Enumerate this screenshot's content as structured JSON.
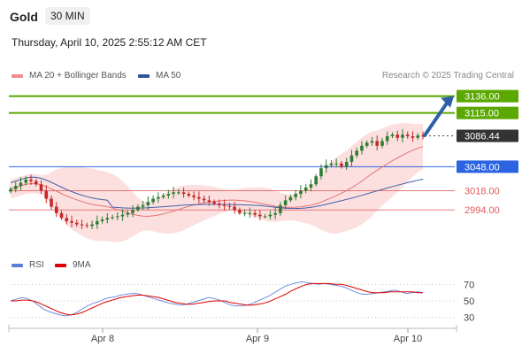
{
  "header": {
    "title": "Gold",
    "timeframe": "30 MIN"
  },
  "datetime": "Thursday, April 10, 2025 2:55:12 AM CET",
  "legend": {
    "bollinger": {
      "label": "MA 20 + Bollinger Bands",
      "color": "#f28b8b"
    },
    "ma50": {
      "label": "MA 50",
      "color": "#2f5597"
    }
  },
  "credit": "Research © 2025 Trading Central",
  "rsi_legend": {
    "rsi": {
      "label": "RSI",
      "color": "#5b7fd6"
    },
    "ma9": {
      "label": "9MA",
      "color": "#e00000"
    }
  },
  "chart_data": {
    "type": "candlestick",
    "instrument": "Gold",
    "timeframe": "30 MIN",
    "x_ticks": [
      "Apr 8",
      "Apr 9",
      "Apr 10"
    ],
    "price_range": [
      2960,
      3150
    ],
    "levels": [
      {
        "value": 3136.0,
        "label": "3136.00",
        "color": "#5aa800",
        "style": "resistance"
      },
      {
        "value": 3115.0,
        "label": "3115.00",
        "color": "#5aa800",
        "style": "resistance"
      },
      {
        "value": 3086.44,
        "label": "3086.44",
        "color": "#333333",
        "style": "last"
      },
      {
        "value": 3048.0,
        "label": "3048.00",
        "color": "#2b63e0",
        "style": "pivot"
      },
      {
        "value": 3018.0,
        "label": "3018.00",
        "color": "#e05a5a",
        "style": "support"
      },
      {
        "value": 2994.0,
        "label": "2994.00",
        "color": "#e05a5a",
        "style": "support"
      }
    ],
    "closes": [
      3020,
      3024,
      3028,
      3032,
      3030,
      3026,
      3018,
      3008,
      2998,
      2990,
      2984,
      2980,
      2978,
      2976,
      2975,
      2974,
      2976,
      2980,
      2982,
      2984,
      2985,
      2986,
      2988,
      2990,
      2994,
      2998,
      3000,
      3004,
      3008,
      3010,
      3012,
      3014,
      3016,
      3016,
      3014,
      3012,
      3010,
      3008,
      3006,
      3004,
      3002,
      3000,
      2999,
      2998,
      2994,
      2990,
      2990,
      2990,
      2988,
      2986,
      2986,
      2988,
      2990,
      3000,
      3006,
      3010,
      3014,
      3018,
      3022,
      3026,
      3036,
      3046,
      3050,
      3052,
      3052,
      3048,
      3054,
      3062,
      3068,
      3074,
      3078,
      3080,
      3074,
      3080,
      3086,
      3088,
      3084,
      3088,
      3086,
      3084,
      3087,
      3086
    ],
    "arrow": {
      "from_value": 3087,
      "to_value": 3136,
      "color": "#2f5fa7"
    },
    "rsi": {
      "ticks": [
        70,
        50,
        30
      ],
      "range": [
        20,
        80
      ],
      "values": [
        50,
        52,
        54,
        53,
        50,
        45,
        40,
        37,
        35,
        33,
        32,
        33,
        36,
        40,
        44,
        47,
        49,
        52,
        54,
        55,
        57,
        58,
        59,
        59,
        57,
        55,
        53,
        51,
        49,
        47,
        46,
        45,
        46,
        48,
        50,
        52,
        54,
        53,
        51,
        48,
        45,
        44,
        44,
        45,
        47,
        50,
        53,
        56,
        60,
        64,
        68,
        70,
        72,
        73,
        72,
        71,
        70,
        71,
        70,
        69,
        68,
        66,
        63,
        60,
        58,
        58,
        59,
        60,
        61,
        62,
        63,
        61,
        59,
        60,
        61,
        60
      ],
      "ma_values": [
        50,
        50,
        51,
        51,
        50,
        48,
        45,
        42,
        39,
        36,
        34,
        33,
        34,
        36,
        39,
        42,
        45,
        48,
        50,
        52,
        54,
        55,
        56,
        57,
        57,
        56,
        55,
        54,
        52,
        50,
        48,
        47,
        46,
        46,
        47,
        48,
        49,
        50,
        50,
        50,
        48,
        47,
        46,
        45,
        45,
        46,
        47,
        49,
        52,
        55,
        58,
        62,
        65,
        68,
        70,
        71,
        71,
        71,
        71,
        70,
        70,
        69,
        67,
        65,
        63,
        61,
        60,
        60,
        60,
        61,
        61,
        61,
        61,
        61,
        60,
        60
      ]
    }
  }
}
